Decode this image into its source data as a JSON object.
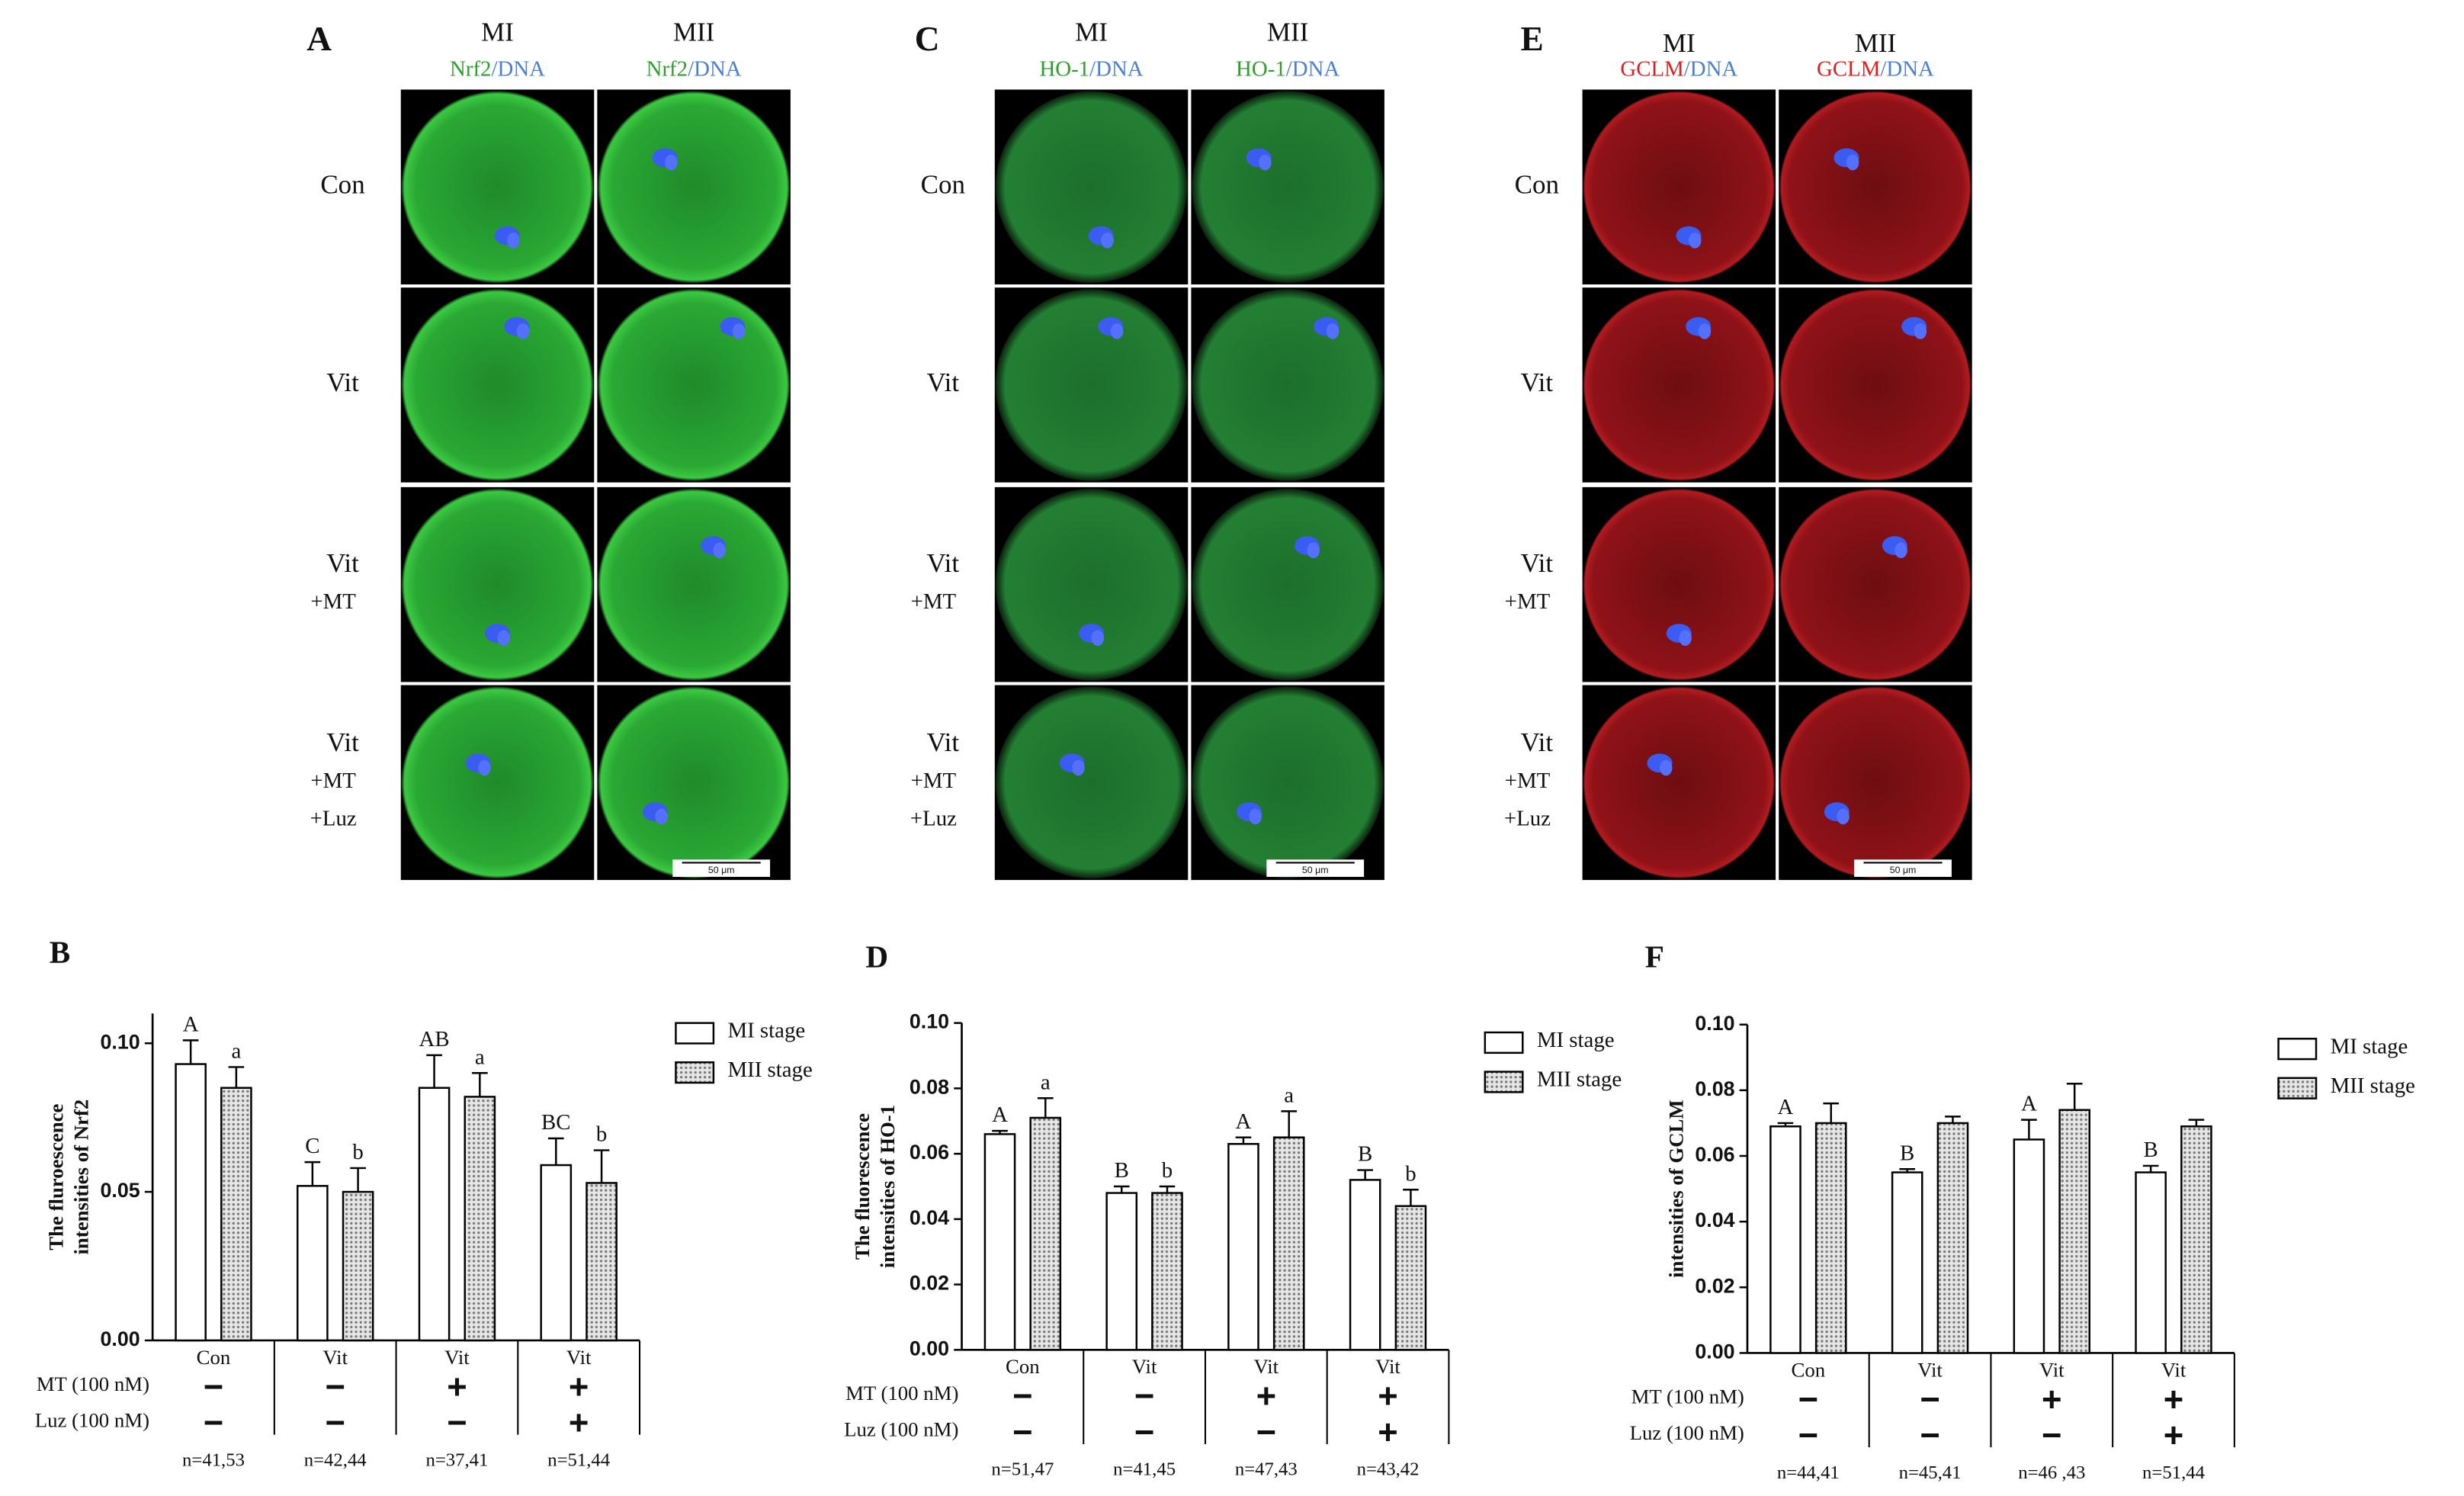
{
  "micrograph_panels": [
    {
      "letter": "A",
      "columns": [
        "MI",
        "MII"
      ],
      "stain": [
        "Nrf2",
        "/DNA"
      ],
      "rows": [
        [
          "Con"
        ],
        [
          "Vit"
        ],
        [
          "Vit",
          "+MT"
        ],
        [
          "Vit",
          "+MT",
          "+Luz"
        ]
      ],
      "scale_bar": "50 μm"
    },
    {
      "letter": "C",
      "columns": [
        "MI",
        "MII"
      ],
      "stain": [
        "HO-1",
        "/DNA"
      ],
      "rows": [
        [
          "Con"
        ],
        [
          "Vit"
        ],
        [
          "Vit",
          "+MT"
        ],
        [
          "Vit",
          "+MT",
          "+Luz"
        ]
      ],
      "scale_bar": "50 μm"
    },
    {
      "letter": "E",
      "columns": [
        "MI",
        "MII"
      ],
      "stain": [
        "GCLM",
        "/DNA"
      ],
      "rows": [
        [
          "Con"
        ],
        [
          "Vit"
        ],
        [
          "Vit",
          "+MT"
        ],
        [
          "Vit",
          "+MT",
          "+Luz"
        ]
      ],
      "scale_bar": "50 μm"
    }
  ],
  "chart_data": [
    {
      "type": "bar",
      "panel_label": "B",
      "y_label": [
        "The fluroescence",
        "intensities of Nrf2"
      ],
      "categories": [
        "Con",
        "Vit",
        "Vit",
        "Vit"
      ],
      "series": [
        {
          "name": "MI stage",
          "color": "#ffffff",
          "pattern": "none",
          "values": [
            0.093,
            0.052,
            0.085,
            0.059
          ],
          "errors": [
            0.008,
            0.008,
            0.011,
            0.009
          ],
          "significance": [
            "A",
            "C",
            "AB",
            "BC"
          ]
        },
        {
          "name": "MII stage",
          "color": "#c8c8c8",
          "pattern": "dots",
          "values": [
            0.085,
            0.05,
            0.082,
            0.053
          ],
          "errors": [
            0.007,
            0.008,
            0.008,
            0.011
          ],
          "significance": [
            "a",
            "b",
            "a",
            "b"
          ]
        }
      ],
      "treatment_rows": [
        {
          "label": "MT (100 nM)",
          "values": [
            "−",
            "−",
            "+",
            "+"
          ]
        },
        {
          "label": "Luz (100 nM)",
          "values": [
            "−",
            "−",
            "−",
            "+"
          ]
        }
      ],
      "n_labels": [
        "n=41,53",
        "n=42,44",
        "n=37,41",
        "n=51,44"
      ],
      "ylim": [
        0,
        0.11
      ],
      "yticks": [
        {
          "value": 0,
          "label": "0.00"
        },
        {
          "value": 0.05,
          "label": "0.05"
        },
        {
          "value": 0.1,
          "label": "0.10"
        }
      ]
    },
    {
      "type": "bar",
      "panel_label": "D",
      "y_label": [
        "The fluorescence",
        "intensities of HO-1"
      ],
      "categories": [
        "Con",
        "Vit",
        "Vit",
        "Vit"
      ],
      "series": [
        {
          "name": "MI stage",
          "color": "#ffffff",
          "pattern": "none",
          "values": [
            0.066,
            0.048,
            0.063,
            0.052
          ],
          "errors": [
            0.001,
            0.002,
            0.002,
            0.003
          ],
          "significance": [
            "A",
            "B",
            "A",
            "B"
          ]
        },
        {
          "name": "MII stage",
          "color": "#c8c8c8",
          "pattern": "dots",
          "values": [
            0.071,
            0.048,
            0.065,
            0.044
          ],
          "errors": [
            0.006,
            0.002,
            0.008,
            0.005
          ],
          "significance": [
            "a",
            "b",
            "a",
            "b"
          ]
        }
      ],
      "treatment_rows": [
        {
          "label": "MT (100 nM)",
          "values": [
            "−",
            "−",
            "+",
            "+"
          ]
        },
        {
          "label": "Luz (100 nM)",
          "values": [
            "−",
            "−",
            "−",
            "+"
          ]
        }
      ],
      "n_labels": [
        "n=51,47",
        "n=41,45",
        "n=47,43",
        "n=43,42"
      ],
      "ylim": [
        0,
        0.1
      ],
      "yticks": [
        {
          "value": 0,
          "label": "0.00"
        },
        {
          "value": 0.02,
          "label": "0.02"
        },
        {
          "value": 0.04,
          "label": "0.04"
        },
        {
          "value": 0.06,
          "label": "0.06"
        },
        {
          "value": 0.08,
          "label": "0.08"
        },
        {
          "value": 0.1,
          "label": "0.10"
        }
      ]
    },
    {
      "type": "bar",
      "panel_label": "F",
      "y_label": [
        "intensities of GCLM"
      ],
      "categories": [
        "Con",
        "Vit",
        "Vit",
        "Vit"
      ],
      "series": [
        {
          "name": "MI stage",
          "color": "#ffffff",
          "pattern": "none",
          "values": [
            0.069,
            0.055,
            0.065,
            0.055
          ],
          "errors": [
            0.001,
            0.001,
            0.006,
            0.002
          ],
          "significance": [
            "A",
            "B",
            "A",
            "B"
          ]
        },
        {
          "name": "MII stage",
          "color": "#c8c8c8",
          "pattern": "dots",
          "values": [
            0.07,
            0.07,
            0.074,
            0.069
          ],
          "errors": [
            0.006,
            0.002,
            0.008,
            0.002
          ]
        }
      ],
      "treatment_rows": [
        {
          "label": "MT (100 nM)",
          "values": [
            "−",
            "−",
            "+",
            "+"
          ]
        },
        {
          "label": "Luz (100 nM)",
          "values": [
            "−",
            "−",
            "−",
            "+"
          ]
        }
      ],
      "n_labels": [
        "n=44,41",
        "n=45,41",
        "n=46 ,43",
        "n=51,44"
      ],
      "ylim": [
        0,
        0.1
      ],
      "yticks": [
        {
          "value": 0,
          "label": "0.00"
        },
        {
          "value": 0.02,
          "label": "0.02"
        },
        {
          "value": 0.04,
          "label": "0.04"
        },
        {
          "value": 0.06,
          "label": "0.06"
        },
        {
          "value": 0.08,
          "label": "0.08"
        },
        {
          "value": 0.1,
          "label": "0.10"
        }
      ]
    }
  ]
}
